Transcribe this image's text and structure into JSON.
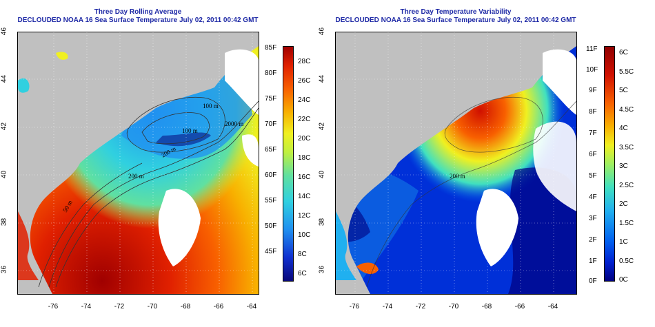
{
  "left_panel": {
    "title": "Three Day Rolling Average",
    "subtitle": "DECLOUDED NOAA 16 Sea Surface Temperature July 02, 2011 00:42 GMT",
    "contour_labels": [
      "100 m",
      "100 m",
      "2000 m",
      "200 m",
      "200 m",
      "50 m"
    ],
    "colorbar_f": [
      "85F",
      "80F",
      "75F",
      "70F",
      "65F",
      "60F",
      "55F",
      "50F",
      "45F"
    ],
    "colorbar_c": [
      "28C",
      "26C",
      "24C",
      "22C",
      "20C",
      "18C",
      "16C",
      "14C",
      "12C",
      "10C",
      "8C",
      "6C"
    ]
  },
  "right_panel": {
    "title": "Three Day Temperature Variability",
    "subtitle": "DECLOUDED NOAA 16 Sea Surface Temperature July 02, 2011 00:42 GMT",
    "contour_labels": [
      "200 m"
    ],
    "colorbar_f": [
      "11F",
      "10F",
      "9F",
      "8F",
      "7F",
      "6F",
      "5F",
      "4F",
      "3F",
      "2F",
      "1F",
      "0F"
    ],
    "colorbar_c": [
      "6C",
      "5.5C",
      "5C",
      "4.5C",
      "4C",
      "3.5C",
      "3C",
      "2.5C",
      "2C",
      "1.5C",
      "1C",
      "0.5C",
      "0C"
    ]
  },
  "y_ticks": [
    "46",
    "44",
    "42",
    "40",
    "38",
    "36"
  ],
  "x_ticks": [
    "-76",
    "-74",
    "-72",
    "-70",
    "-68",
    "-66",
    "-64"
  ],
  "colors": {
    "title": "#1f2aa6",
    "land": "#c0c0c0",
    "cloud": "#ffffff",
    "sst_scale": [
      "#08087a",
      "#1030d0",
      "#2090f0",
      "#30d0e0",
      "#60e0a0",
      "#c0f040",
      "#f0f020",
      "#f8b000",
      "#f86000",
      "#e02000",
      "#a00000"
    ],
    "var_scale": [
      "#000080",
      "#0020d0",
      "#0060f0",
      "#20b0f0",
      "#40e0c0",
      "#a0f060",
      "#f0f020",
      "#f8b000",
      "#f86000",
      "#d01000",
      "#900000"
    ]
  }
}
